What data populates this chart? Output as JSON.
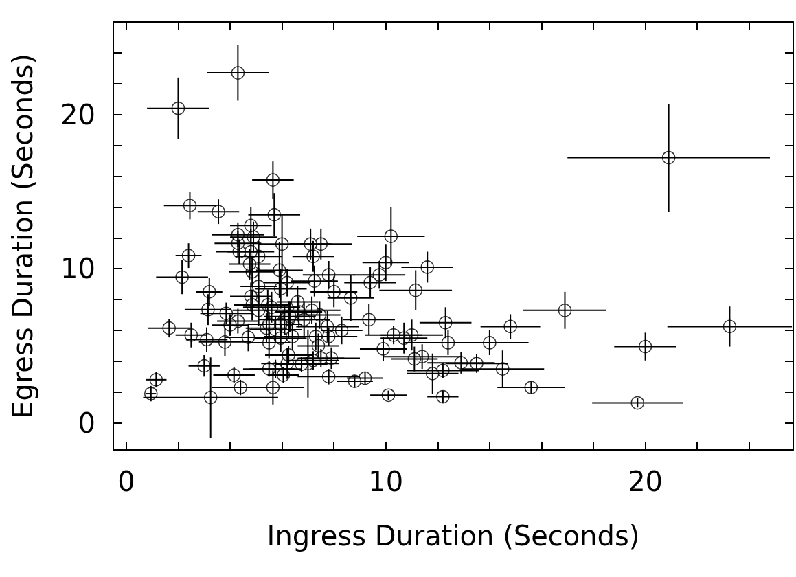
{
  "chart_data": {
    "type": "scatter",
    "xlabel": "Ingress Duration (Seconds)",
    "ylabel": "Egress Duration (Seconds)",
    "marker": "circle",
    "color": "#000000",
    "xlim": [
      -0.5,
      25.7
    ],
    "ylim": [
      -1.75,
      26
    ],
    "xticks": [
      0,
      {
        "value": 2,
        "label": null
      },
      {
        "value": 4,
        "label": null
      },
      {
        "value": 6,
        "label": null
      },
      {
        "value": 8,
        "label": null
      },
      10,
      {
        "value": 12,
        "label": null
      },
      {
        "value": 14,
        "label": null
      },
      {
        "value": 16,
        "label": null
      },
      {
        "value": 18,
        "label": null
      },
      20,
      {
        "value": 22,
        "label": null
      },
      {
        "value": 24,
        "label": null
      }
    ],
    "yticks": [
      0,
      {
        "value": 2,
        "label": null
      },
      {
        "value": 4,
        "label": null
      },
      {
        "value": 6,
        "label": null
      },
      {
        "value": 8,
        "label": null
      },
      10,
      {
        "value": 12,
        "label": null
      },
      {
        "value": 14,
        "label": null
      },
      {
        "value": 16,
        "label": null
      },
      {
        "value": 18,
        "label": null
      },
      20,
      {
        "value": 22,
        "label": null
      },
      {
        "value": 24,
        "label": null
      }
    ],
    "x": [
      2.0,
      4.3,
      20.9,
      23.25,
      20.0,
      19.7,
      16.9,
      14.8,
      15.6,
      14.5,
      14.0,
      13.5,
      12.9,
      12.3,
      12.4,
      12.2,
      12.2,
      11.8,
      11.4,
      11.1,
      11.6,
      11.15,
      11.0,
      10.7,
      10.3,
      10.2,
      10.0,
      9.75,
      9.4,
      9.9,
      10.1,
      9.35,
      9.2,
      8.8,
      8.65,
      8.0,
      7.8,
      7.8,
      7.75,
      7.8,
      7.9,
      7.5,
      7.1,
      7.2,
      7.25,
      7.3,
      7.45,
      7.5,
      7.0,
      7.4,
      6.6,
      6.2,
      6.25,
      6.2,
      6.0,
      5.9,
      5.95,
      5.7,
      5.65,
      5.1,
      4.85,
      5.1,
      4.75,
      4.8,
      4.35,
      4.3,
      4.3,
      4.9,
      4.8,
      3.55,
      2.45,
      2.4,
      2.15,
      3.2,
      3.15,
      3.85,
      1.65,
      2.5,
      3.1,
      3.8,
      3.0,
      1.15,
      0.95,
      3.25,
      4.15,
      4.4,
      5.65,
      5.75,
      5.5,
      6.05,
      4.7,
      4.3,
      4.0,
      4.8,
      4.85,
      5.1,
      5.45,
      5.6,
      5.4,
      5.75,
      5.5,
      5.95,
      6.1,
      6.4,
      6.65,
      6.85,
      6.3,
      7.15,
      5.5,
      5.95,
      6.75,
      7.2,
      8.3,
      6.25
    ],
    "values": [
      20.4,
      22.7,
      17.2,
      6.25,
      4.95,
      1.3,
      7.3,
      6.25,
      2.3,
      3.5,
      5.2,
      3.85,
      3.9,
      6.5,
      5.2,
      3.4,
      1.7,
      3.2,
      4.3,
      4.15,
      10.1,
      8.6,
      5.7,
      5.5,
      5.7,
      12.1,
      10.4,
      9.6,
      9.1,
      4.8,
      1.8,
      6.7,
      2.9,
      2.7,
      8.1,
      8.5,
      9.6,
      5.6,
      6.25,
      3.0,
      4.2,
      11.6,
      11.6,
      10.8,
      9.2,
      5.6,
      7.0,
      4.2,
      3.85,
      5.0,
      7.85,
      3.85,
      6.7,
      9.1,
      11.6,
      9.9,
      8.7,
      13.5,
      15.75,
      8.85,
      9.8,
      10.8,
      10.3,
      11.1,
      11.1,
      11.65,
      12.2,
      12.05,
      12.8,
      13.7,
      14.1,
      10.85,
      9.45,
      8.5,
      7.35,
      7.1,
      6.15,
      5.7,
      5.4,
      5.25,
      3.7,
      2.8,
      1.9,
      1.65,
      3.1,
      2.3,
      2.3,
      3.5,
      3.5,
      3.1,
      5.55,
      6.6,
      6.35,
      8.2,
      7.65,
      7.3,
      7.65,
      7.5,
      6.15,
      6.05,
      5.2,
      5.5,
      6.7,
      5.6,
      7.2,
      6.7,
      6.9,
      7.3,
      6.4,
      6.4,
      3.8,
      4.05,
      6.0,
      4.4
    ],
    "xerrors": [
      1.2,
      1.2,
      3.9,
      2.4,
      1.2,
      1.75,
      1.6,
      1.15,
      1.3,
      1.6,
      1.5,
      1.2,
      1.3,
      1.0,
      1.7,
      1.4,
      0.6,
      1.0,
      1.5,
      0.9,
      1.0,
      1.4,
      1.2,
      0.9,
      1.1,
      1.3,
      0.9,
      1.0,
      1.0,
      0.9,
      0.7,
      1.0,
      0.7,
      0.7,
      0.9,
      0.9,
      1.0,
      1.1,
      1.2,
      1.2,
      1.1,
      1.2,
      0.8,
      0.8,
      0.9,
      1.1,
      0.8,
      0.9,
      1.2,
      0.8,
      0.8,
      1.0,
      0.9,
      0.9,
      0.9,
      0.9,
      1.0,
      1.0,
      0.8,
      0.7,
      0.9,
      0.9,
      0.8,
      0.9,
      0.9,
      0.9,
      1.0,
      0.9,
      0.8,
      0.8,
      1.0,
      0.5,
      1.0,
      0.5,
      0.9,
      1.0,
      0.8,
      0.6,
      0.8,
      1.0,
      0.6,
      0.4,
      0.2,
      2.6,
      0.8,
      1.1,
      1.2,
      1.0,
      1.0,
      0.6,
      0.9,
      0.8,
      0.7,
      0.8,
      0.7,
      1.0,
      0.9,
      1.1,
      0.8,
      1.0,
      0.8,
      1.0,
      1.0,
      1.1,
      0.9,
      1.0,
      1.0,
      1.1,
      0.8,
      0.8,
      1.0,
      1.0,
      0.8,
      0.9
    ],
    "errors": [
      2.0,
      1.8,
      3.5,
      1.3,
      0.9,
      0.3,
      1.2,
      0.8,
      0.4,
      1.2,
      0.8,
      0.6,
      0.7,
      1.0,
      0.8,
      0.5,
      0.4,
      1.3,
      0.8,
      0.8,
      1.0,
      1.3,
      1.0,
      1.0,
      0.6,
      1.9,
      1.2,
      0.9,
      1.0,
      0.8,
      0.3,
      1.0,
      0.4,
      0.4,
      1.5,
      1.0,
      0.9,
      0.6,
      1.0,
      0.5,
      0.7,
      1.0,
      1.0,
      1.0,
      1.0,
      0.9,
      0.9,
      0.6,
      2.2,
      0.8,
      1.0,
      1.0,
      1.2,
      0.9,
      1.9,
      1.8,
      1.3,
      1.4,
      1.2,
      1.2,
      1.0,
      1.0,
      1.0,
      1.5,
      0.8,
      0.8,
      0.8,
      1.0,
      1.2,
      0.8,
      0.9,
      0.8,
      1.1,
      0.9,
      1.0,
      0.7,
      0.6,
      0.8,
      0.8,
      0.9,
      0.7,
      0.5,
      0.5,
      2.6,
      0.5,
      0.5,
      1.1,
      0.6,
      0.5,
      0.5,
      0.9,
      0.8,
      0.7,
      0.9,
      1.0,
      1.0,
      1.0,
      1.0,
      1.0,
      0.8,
      1.0,
      0.9,
      1.0,
      0.9,
      1.0,
      1.2,
      1.0,
      0.9,
      0.8,
      0.8,
      0.5,
      0.6,
      0.9,
      0.6
    ]
  }
}
